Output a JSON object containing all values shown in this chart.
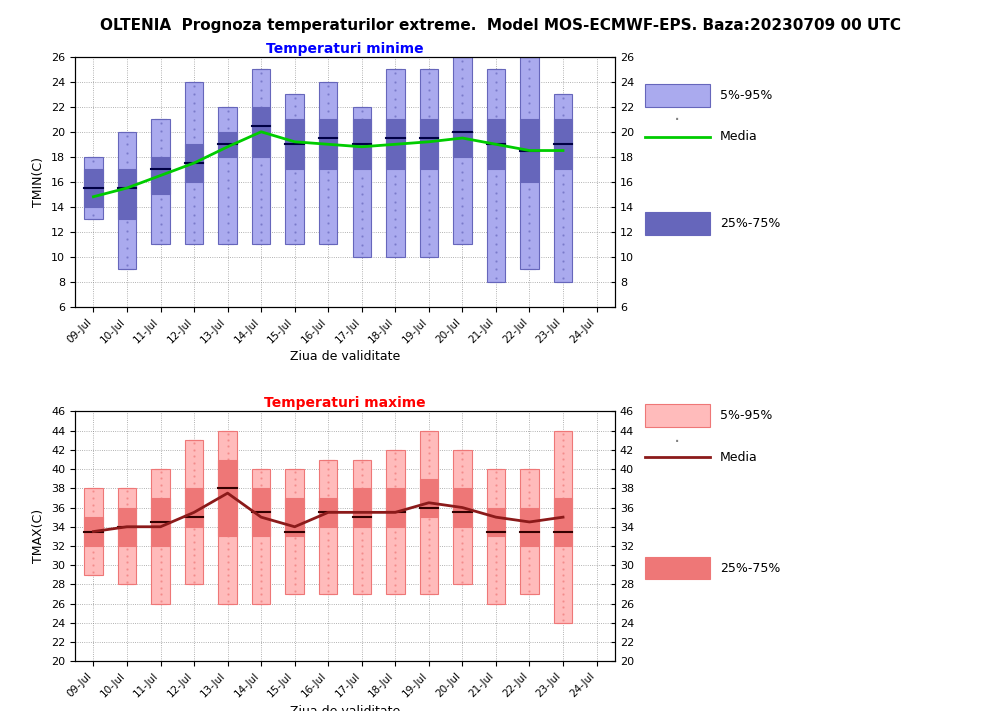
{
  "title": "OLTENIA  Prognoza temperaturilor extreme.  Model MOS-ECMWF-EPS. Baza:20230709 00 UTC",
  "title_fontsize": 11,
  "subtitle_min": "Temperaturi minime",
  "subtitle_max": "Temperaturi maxime",
  "xlabel": "Ziua de validitate",
  "ylabel_min": "TMIN(C)",
  "ylabel_max": "TMAX(C)",
  "dates": [
    "09-Jul",
    "10-Jul",
    "11-Jul",
    "12-Jul",
    "13-Jul",
    "14-Jul",
    "15-Jul",
    "16-Jul",
    "17-Jul",
    "18-Jul",
    "19-Jul",
    "20-Jul",
    "21-Jul",
    "22-Jul",
    "23-Jul",
    "24-Jul"
  ],
  "tmin": {
    "p5": [
      13,
      9,
      11,
      11,
      11,
      11,
      11,
      11,
      10,
      10,
      10,
      11,
      8,
      9,
      8,
      null
    ],
    "p25": [
      14,
      13,
      15,
      16,
      18,
      18,
      17,
      17,
      17,
      17,
      17,
      18,
      17,
      16,
      17,
      null
    ],
    "median": [
      15.5,
      15.5,
      17.0,
      17.5,
      19.0,
      20.5,
      19.0,
      19.5,
      19.0,
      19.5,
      19.5,
      20.0,
      19.0,
      18.5,
      19.0,
      null
    ],
    "p75": [
      17,
      17,
      18,
      19,
      20,
      22,
      21,
      21,
      21,
      21,
      21,
      21,
      21,
      21,
      21,
      null
    ],
    "p95": [
      18,
      20,
      21,
      24,
      22,
      25,
      23,
      24,
      22,
      25,
      25,
      26,
      25,
      26,
      23,
      null
    ],
    "mean": [
      14.8,
      15.5,
      16.5,
      17.5,
      18.8,
      20.0,
      19.2,
      19.0,
      18.8,
      19.0,
      19.2,
      19.5,
      19.0,
      18.5,
      18.5,
      null
    ]
  },
  "tmax": {
    "p5": [
      29,
      28,
      26,
      28,
      26,
      26,
      27,
      27,
      27,
      27,
      27,
      28,
      26,
      27,
      24,
      null
    ],
    "p25": [
      32,
      32,
      32,
      34,
      33,
      33,
      33,
      34,
      34,
      34,
      35,
      34,
      33,
      32,
      32,
      null
    ],
    "median": [
      33.5,
      34.0,
      34.5,
      35.0,
      38.0,
      35.5,
      33.5,
      35.5,
      35.0,
      35.5,
      36.0,
      35.5,
      33.5,
      33.5,
      33.5,
      null
    ],
    "p75": [
      35,
      36,
      37,
      38,
      41,
      38,
      37,
      37,
      38,
      38,
      39,
      38,
      36,
      36,
      37,
      null
    ],
    "p95": [
      38,
      38,
      40,
      43,
      44,
      40,
      40,
      41,
      41,
      42,
      44,
      42,
      40,
      40,
      44,
      null
    ],
    "mean": [
      33.5,
      34.0,
      34.0,
      35.5,
      37.5,
      35.0,
      34.0,
      35.5,
      35.5,
      35.5,
      36.5,
      36.0,
      35.0,
      34.5,
      35.0,
      null
    ]
  },
  "color_box_light_min": "#aaaaee",
  "color_box_dark_min": "#6666bb",
  "color_median_min": "#000044",
  "color_mean_min": "#00cc00",
  "color_box_light_max": "#ffbbbb",
  "color_box_dark_max": "#ee7777",
  "color_median_max": "#330000",
  "color_mean_max": "#8b1a1a",
  "ylim_min": [
    6,
    26
  ],
  "ylim_max": [
    20,
    46
  ],
  "yticks_min": [
    6,
    8,
    10,
    12,
    14,
    16,
    18,
    20,
    22,
    24,
    26
  ],
  "yticks_max": [
    20,
    22,
    24,
    26,
    28,
    30,
    32,
    34,
    36,
    38,
    40,
    42,
    44,
    46
  ]
}
